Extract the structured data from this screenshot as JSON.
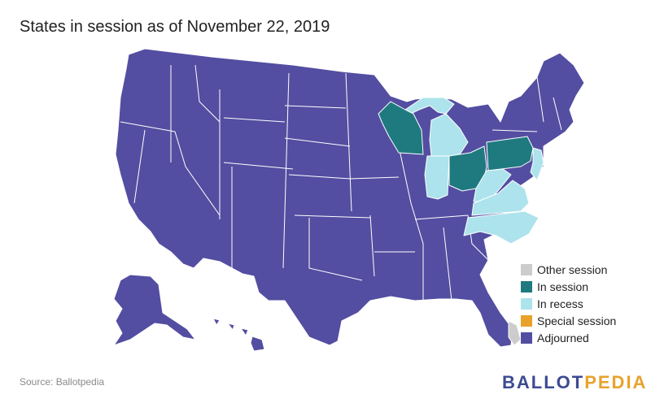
{
  "title": "States in session as of November 22, 2019",
  "legend": [
    {
      "label": "Other session",
      "color": "#cccccc"
    },
    {
      "label": "In session",
      "color": "#1f7a80"
    },
    {
      "label": "In recess",
      "color": "#ade3ec"
    },
    {
      "label": "Special session",
      "color": "#e8a22c"
    },
    {
      "label": "Adjourned",
      "color": "#534ea1"
    }
  ],
  "source": "Source: Ballotpedia",
  "brand": {
    "part1": "BALLOT",
    "part2": "PEDIA"
  },
  "states": {
    "in_session": [
      "Wisconsin",
      "Ohio",
      "Pennsylvania"
    ],
    "in_recess": [
      "Michigan",
      "Indiana",
      "West Virginia",
      "Virginia",
      "North Carolina",
      "New Jersey"
    ],
    "adjourned": "all other states"
  }
}
